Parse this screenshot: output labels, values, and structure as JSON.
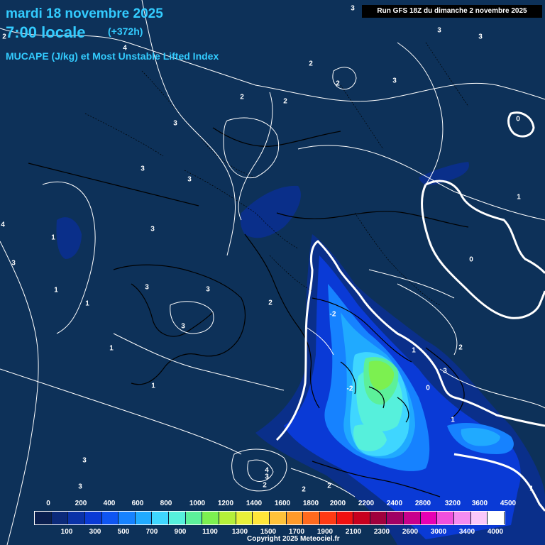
{
  "header": {
    "date": "mardi 18 novembre 2025",
    "time": "7:00 locale",
    "offset": "(+372h)",
    "parameter": "MUCAPE (J/kg) et Most Unstable Lifted Index",
    "run": "Run GFS 18Z du dimanche 2 novembre 2025"
  },
  "legend": {
    "top_labels": [
      "0",
      "200",
      "400",
      "600",
      "800",
      "1000",
      "1200",
      "1400",
      "1600",
      "1800",
      "2000",
      "2200",
      "2400",
      "2800",
      "3200",
      "3600",
      "4500"
    ],
    "bottom_labels": [
      "100",
      "300",
      "500",
      "700",
      "900",
      "1100",
      "1300",
      "1500",
      "1700",
      "1900",
      "2100",
      "2300",
      "2600",
      "3000",
      "3400",
      "4000"
    ],
    "colors": [
      "#0a1f4f",
      "#0b2a7a",
      "#0a32a8",
      "#0a3ad6",
      "#0f55f2",
      "#1682ff",
      "#20aaff",
      "#3fd6ff",
      "#56f0dc",
      "#5cf09a",
      "#7cf050",
      "#b4f03a",
      "#e8f03a",
      "#ffe63a",
      "#ffc23a",
      "#ff9a2a",
      "#ff6a1e",
      "#ff3a14",
      "#f01010",
      "#c8001e",
      "#a0003c",
      "#a00064",
      "#c8008c",
      "#e600b4",
      "#f050dc",
      "#f58cf0",
      "#fac8fa",
      "#ffffff"
    ]
  },
  "contour_labels": [
    {
      "text": "3"
    },
    {
      "text": "2"
    },
    {
      "text": "3"
    },
    {
      "text": "3"
    },
    {
      "text": "4"
    },
    {
      "text": "2"
    },
    {
      "text": "2"
    },
    {
      "text": "3"
    },
    {
      "text": "2"
    },
    {
      "text": "2"
    },
    {
      "text": "3"
    },
    {
      "text": "3"
    },
    {
      "text": "0"
    },
    {
      "text": "1"
    },
    {
      "text": "3"
    },
    {
      "text": "1"
    },
    {
      "text": "3"
    },
    {
      "text": "4"
    },
    {
      "text": "1"
    },
    {
      "text": "3"
    },
    {
      "text": "3"
    },
    {
      "text": "0"
    },
    {
      "text": "1"
    },
    {
      "text": "2"
    },
    {
      "text": "3"
    },
    {
      "text": "3"
    },
    {
      "text": "1"
    },
    {
      "text": "-2"
    },
    {
      "text": "1"
    },
    {
      "text": "2"
    },
    {
      "text": "-2"
    },
    {
      "text": "0"
    },
    {
      "text": "3"
    },
    {
      "text": "1"
    },
    {
      "text": "1"
    },
    {
      "text": "3"
    },
    {
      "text": "4"
    },
    {
      "text": "3"
    },
    {
      "text": "2"
    },
    {
      "text": "2"
    },
    {
      "text": "1"
    },
    {
      "text": "3"
    },
    {
      "text": "2"
    }
  ],
  "copyright": "Copyright 2025 Meteociel.fr"
}
